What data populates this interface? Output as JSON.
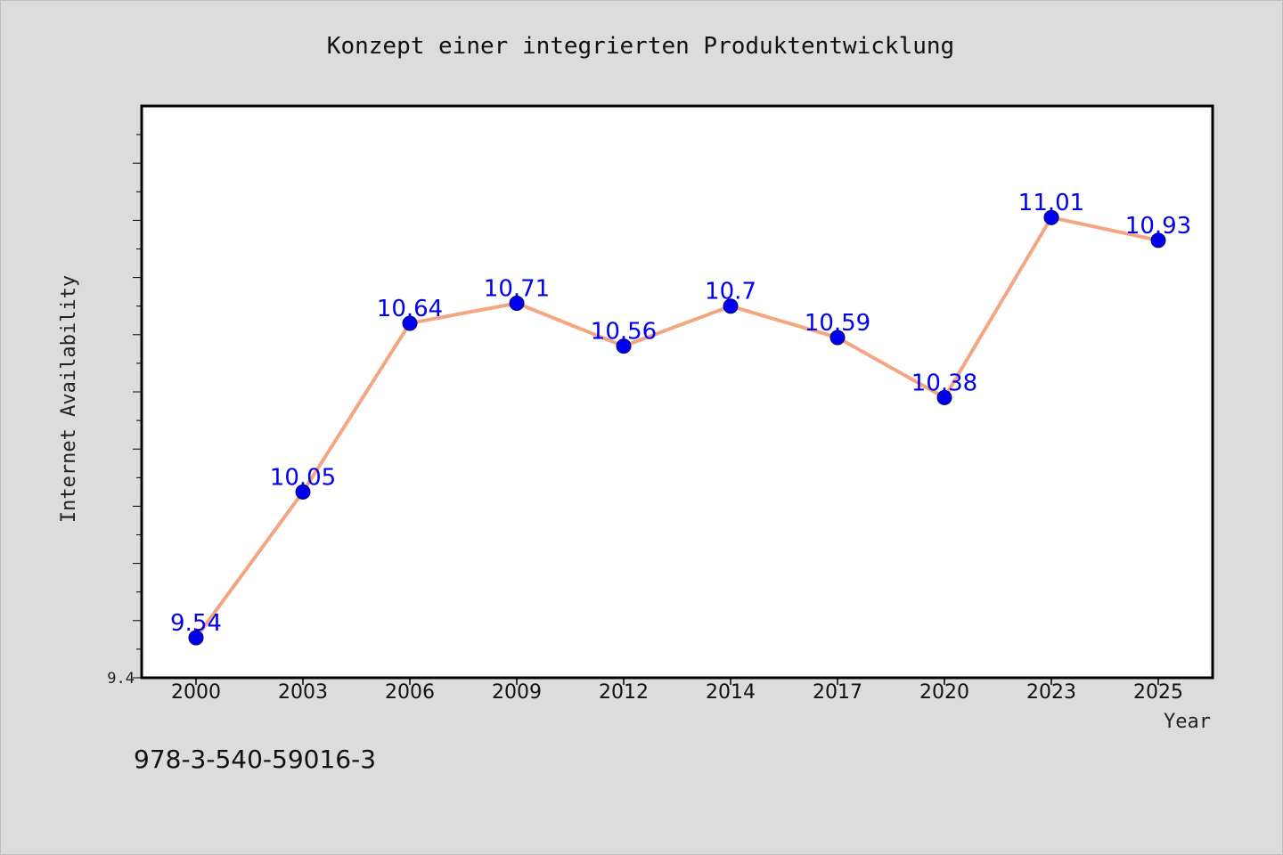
{
  "chart_data": {
    "type": "line",
    "title": "Konzept einer integrierten Produktentwicklung",
    "xlabel": "Year",
    "ylabel": "Internet Availability",
    "categories": [
      "2000",
      "2003",
      "2006",
      "2009",
      "2012",
      "2014",
      "2017",
      "2020",
      "2023",
      "2025"
    ],
    "series": [
      {
        "values": [
          9.54,
          10.05,
          10.64,
          10.71,
          10.56,
          10.7,
          10.59,
          10.38,
          11.01,
          10.93
        ],
        "data_labels": [
          "9.54",
          "10.05",
          "10.64",
          "10.71",
          "10.56",
          "10.7",
          "10.59",
          "10.38",
          "11.01",
          "10.93"
        ],
        "line_color": "#f4a582",
        "marker_color": "#0000ee"
      }
    ],
    "ylim": [
      9.4,
      11.4
    ],
    "y_tick_labels": [
      "9.4"
    ],
    "grid": false,
    "legend": "none",
    "footer": "978-3-540-59016-3"
  }
}
